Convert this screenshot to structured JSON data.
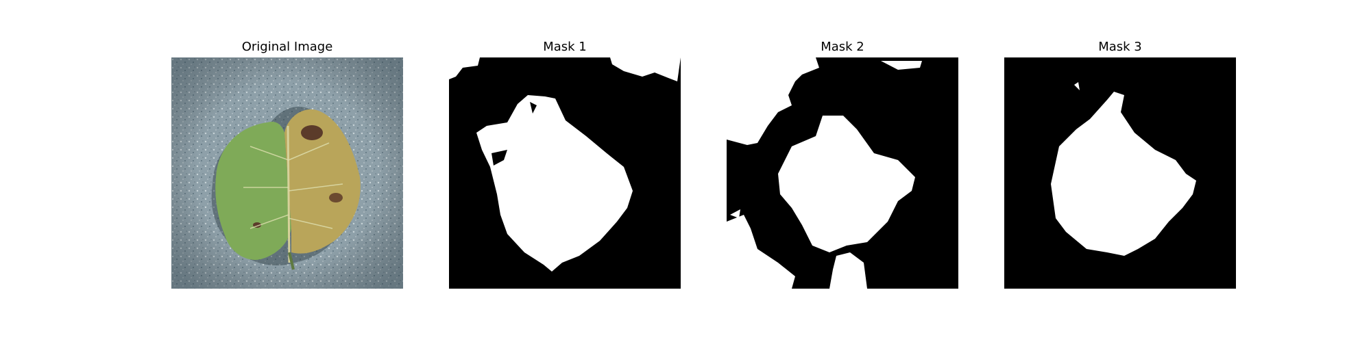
{
  "panels": [
    {
      "title": "Original Image",
      "content": "leaf-photo"
    },
    {
      "title": "Mask 1",
      "content": "binary-mask"
    },
    {
      "title": "Mask 2",
      "content": "binary-mask"
    },
    {
      "title": "Mask 3",
      "content": "binary-mask"
    }
  ],
  "colors": {
    "mask_background": "#000000",
    "mask_foreground": "#ffffff",
    "photo_background": "#8fa3ad",
    "leaf_green": "#7fa65a",
    "leaf_yellow": "#b9a45b",
    "leaf_brown": "#5b3b2a"
  }
}
